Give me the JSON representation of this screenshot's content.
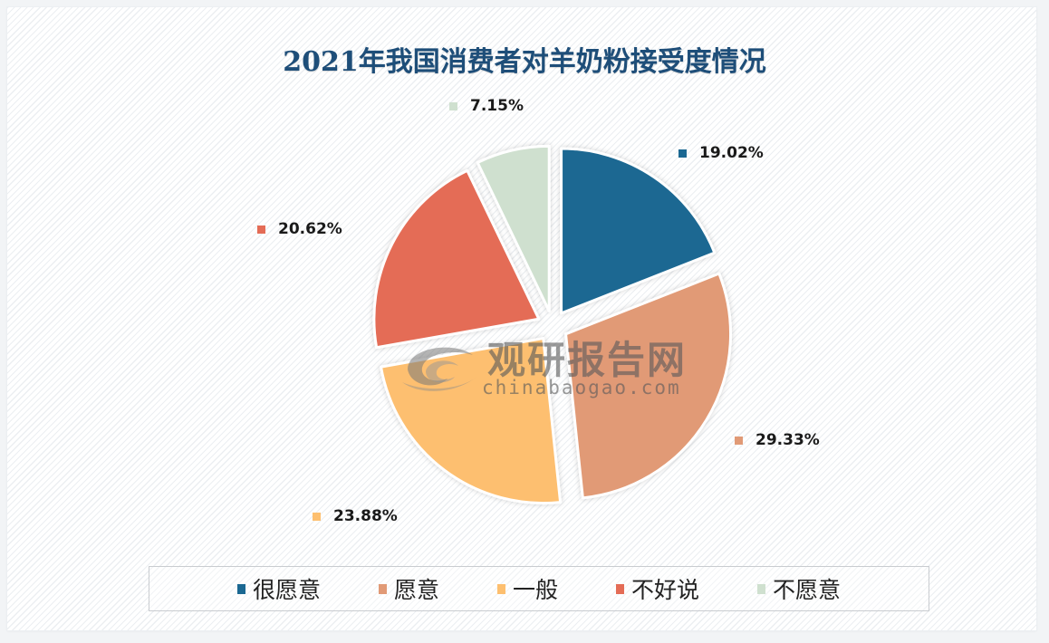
{
  "chart_data": {
    "type": "pie",
    "title": "2021年我国消费者对羊奶粉接受度情况",
    "categories": [
      "很愿意",
      "愿意",
      "一般",
      "不好说",
      "不愿意"
    ],
    "values": [
      19.02,
      29.33,
      23.88,
      20.62,
      7.15
    ],
    "unit": "%",
    "labels": [
      "19.02%",
      "29.33%",
      "23.88%",
      "20.62%",
      "7.15%"
    ],
    "colors": [
      "#1b6892",
      "#e19a76",
      "#fdbf6f",
      "#e46c56",
      "#cfe0cf"
    ],
    "exploded": true,
    "start_angle_deg": 0,
    "direction": "clockwise",
    "legend_position": "bottom"
  },
  "title": "2021年我国消费者对羊奶粉接受度情况",
  "legend": [
    {
      "label": "很愿意",
      "color": "#1b6892"
    },
    {
      "label": "愿意",
      "color": "#e19a76"
    },
    {
      "label": "一般",
      "color": "#fdbf6f"
    },
    {
      "label": "不好说",
      "color": "#e46c56"
    },
    {
      "label": "不愿意",
      "color": "#cfe0cf"
    }
  ],
  "data_labels": [
    {
      "text": "19.02%",
      "color": "#1b6892"
    },
    {
      "text": "29.33%",
      "color": "#e19a76"
    },
    {
      "text": "23.88%",
      "color": "#fdbf6f"
    },
    {
      "text": "20.62%",
      "color": "#e46c56"
    },
    {
      "text": "7.15%",
      "color": "#cfe0cf"
    }
  ],
  "watermark": {
    "cn": "观研报告网",
    "en": "chinabaogao.com"
  }
}
